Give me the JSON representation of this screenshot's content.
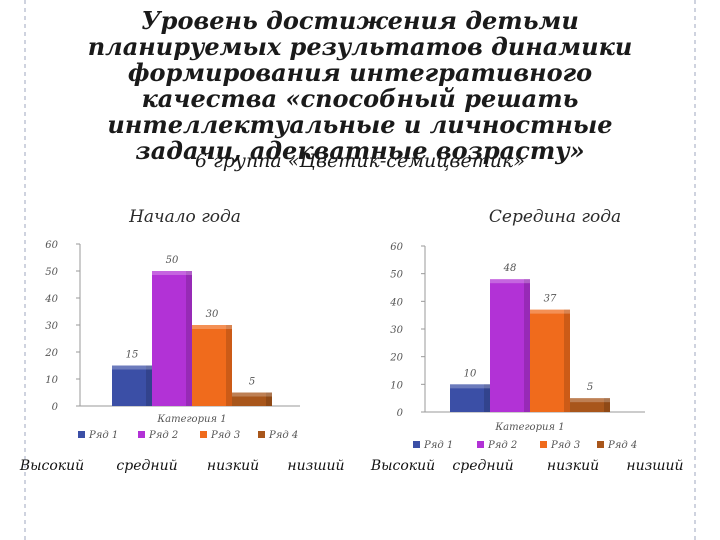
{
  "page": {
    "title": "Уровень достижения детьми планируемых результатов динамики формирования интегративного качества «способный решать интеллектуальные и личностные задачи, адекватные возрасту»",
    "subtitle": "6 группа «Цветик-семицветик»"
  },
  "colors": {
    "series": [
      "#3b4fa6",
      "#b232d6",
      "#f06b1c",
      "#a8561b"
    ]
  },
  "chart_data": [
    {
      "type": "bar",
      "title": "Начало года",
      "categories": [
        "Категория 1"
      ],
      "ylim": [
        0,
        60
      ],
      "yticks": [
        "0",
        "10",
        "20",
        "30",
        "40",
        "50",
        "60"
      ],
      "series": [
        {
          "name": "Ряд 1",
          "values": [
            15
          ]
        },
        {
          "name": "Ряд 2",
          "values": [
            50
          ]
        },
        {
          "name": "Ряд 3",
          "values": [
            30
          ]
        },
        {
          "name": "Ряд 4",
          "values": [
            5
          ]
        }
      ],
      "level_labels": [
        "Высокий",
        "средний",
        "низкий",
        "низший"
      ],
      "legend": "bottom",
      "grid": false
    },
    {
      "type": "bar",
      "title": "Середина года",
      "categories": [
        "Категория 1"
      ],
      "ylim": [
        0,
        60
      ],
      "yticks": [
        "0",
        "10",
        "20",
        "30",
        "40",
        "50",
        "60"
      ],
      "series": [
        {
          "name": "Ряд 1",
          "values": [
            10
          ]
        },
        {
          "name": "Ряд 2",
          "values": [
            48
          ]
        },
        {
          "name": "Ряд 3",
          "values": [
            37
          ]
        },
        {
          "name": "Ряд 4",
          "values": [
            5
          ]
        }
      ],
      "level_labels": [
        "Высокий",
        "средний",
        "низкий",
        "низший"
      ],
      "legend": "bottom",
      "grid": false
    }
  ]
}
